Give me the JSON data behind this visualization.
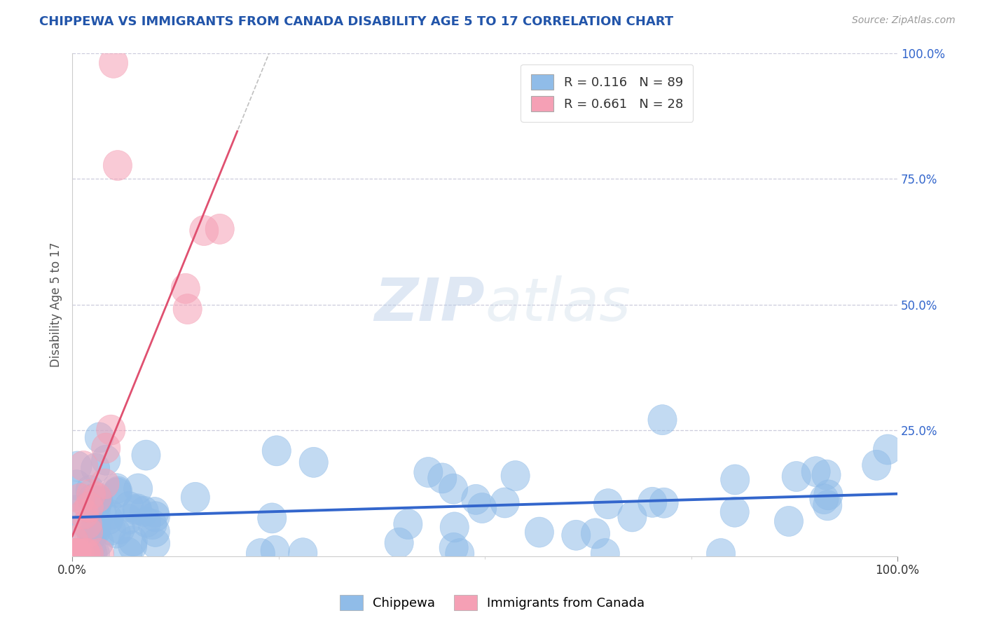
{
  "title": "CHIPPEWA VS IMMIGRANTS FROM CANADA DISABILITY AGE 5 TO 17 CORRELATION CHART",
  "source_text": "Source: ZipAtlas.com",
  "ylabel": "Disability Age 5 to 17",
  "xlim": [
    0.0,
    100.0
  ],
  "ylim": [
    0.0,
    100.0
  ],
  "y_ticks": [
    25,
    50,
    75,
    100
  ],
  "y_tick_labels": [
    "25.0%",
    "50.0%",
    "75.0%",
    "100.0%"
  ],
  "x_tick_labels": [
    "0.0%",
    "100.0%"
  ],
  "chippewa_color": "#90bce8",
  "canada_color": "#f5a0b5",
  "chippewa_edge_color": "#6699cc",
  "canada_edge_color": "#e06080",
  "chippewa_line_color": "#3366cc",
  "canada_line_color": "#e05070",
  "canada_dashed_color": "#cccccc",
  "watermark_color": "#d0dff0",
  "background_color": "#ffffff",
  "grid_color": "#ccccdd",
  "title_color": "#2255aa",
  "ylabel_color": "#555555",
  "ytick_color": "#3366cc",
  "source_color": "#999999",
  "legend_r1": "R = 0.116",
  "legend_n1": "N = 89",
  "legend_r2": "R = 0.661",
  "legend_n2": "N = 28",
  "chip_slope": 0.03,
  "chip_intercept": 8.5,
  "can_slope": 4.2,
  "can_intercept": -2.0
}
